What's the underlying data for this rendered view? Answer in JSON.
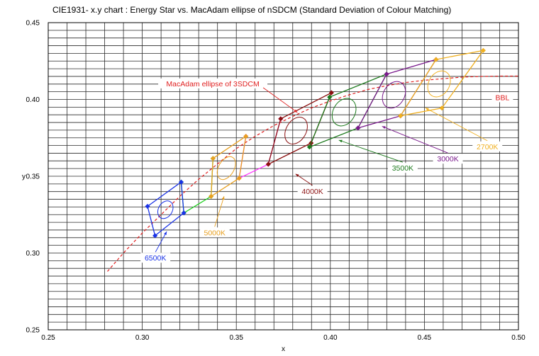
{
  "chart_data": {
    "type": "scatter",
    "title": "CIE1931- x.y chart  : Energy Star vs. MacAdam ellipse of  nSDCM (Standard Deviation of Colour Matching)",
    "xlabel": "x",
    "ylabel": "y",
    "xlim": [
      0.25,
      0.5
    ],
    "ylim": [
      0.25,
      0.45
    ],
    "xticks": [
      "0.25",
      "0.30",
      "0.35",
      "0.40",
      "0.45",
      "0.50"
    ],
    "yticks": [
      "0.25",
      "0.30",
      "0.35",
      "0.40",
      "0.45"
    ],
    "grid": true,
    "colors": {
      "blue": "#1a33e6",
      "green": "#1fcf1f",
      "orange": "#e8a020",
      "magenta": "#ff33ff",
      "darkred": "#8b1010",
      "darkgreen": "#1c7a1c",
      "purple": "#7a1a8c",
      "gold": "#f0b020",
      "red": "#e02020"
    },
    "series": [
      {
        "name": "6500K",
        "color": "#1a33e6",
        "quad": [
          [
            0.3028,
            0.3304
          ],
          [
            0.3207,
            0.3462
          ],
          [
            0.3221,
            0.3261
          ],
          [
            0.3068,
            0.3113
          ]
        ],
        "ellipse": {
          "cx": 0.3123,
          "cy": 0.3282,
          "a": 0.0037,
          "b": 0.0061,
          "tilt": -30
        },
        "label_pos": [
          0.307,
          0.296
        ],
        "arrow_to": [
          0.313,
          0.314
        ]
      },
      {
        "name": "5000K",
        "color": "#e8a020",
        "quad": [
          [
            0.3376,
            0.3616
          ],
          [
            0.3551,
            0.376
          ],
          [
            0.3515,
            0.3487
          ],
          [
            0.3366,
            0.3369
          ]
        ],
        "ellipse": {
          "cx": 0.3447,
          "cy": 0.3553,
          "a": 0.0041,
          "b": 0.0081,
          "tilt": -30
        },
        "label_pos": [
          0.3385,
          0.3125
        ],
        "arrow_to": [
          0.3435,
          0.337
        ]
      },
      {
        "name": "4000K",
        "color": "#8b1010",
        "quad": [
          [
            0.3736,
            0.3874
          ],
          [
            0.4006,
            0.4044
          ],
          [
            0.3898,
            0.3716
          ],
          [
            0.367,
            0.3578
          ]
        ],
        "ellipse": {
          "cx": 0.3818,
          "cy": 0.3797,
          "a": 0.0053,
          "b": 0.0094,
          "tilt": -30
        },
        "label_pos": [
          0.3905,
          0.3395
        ],
        "arrow_to": [
          0.3815,
          0.3515
        ]
      },
      {
        "name": "3500K",
        "color": "#1c7a1c",
        "quad": [
          [
            0.3996,
            0.4015
          ],
          [
            0.4299,
            0.4165
          ],
          [
            0.4147,
            0.3814
          ],
          [
            0.3889,
            0.369
          ]
        ],
        "ellipse": {
          "cx": 0.4073,
          "cy": 0.3917,
          "a": 0.0058,
          "b": 0.0095,
          "tilt": -30
        },
        "label_pos": [
          0.4385,
          0.3545
        ],
        "arrow_to": [
          0.4045,
          0.3735
        ]
      },
      {
        "name": "3000K",
        "color": "#7a1a8c",
        "quad": [
          [
            0.4299,
            0.4165
          ],
          [
            0.4562,
            0.426
          ],
          [
            0.4373,
            0.3893
          ],
          [
            0.4147,
            0.3814
          ]
        ],
        "ellipse": {
          "cx": 0.4338,
          "cy": 0.403,
          "a": 0.0056,
          "b": 0.0092,
          "tilt": -30
        },
        "label_pos": [
          0.4625,
          0.3605
        ],
        "arrow_to": [
          0.4275,
          0.3825
        ]
      },
      {
        "name": "2700K",
        "color": "#f0b020",
        "quad": [
          [
            0.4562,
            0.426
          ],
          [
            0.4813,
            0.4319
          ],
          [
            0.4593,
            0.3944
          ],
          [
            0.4373,
            0.3893
          ]
        ],
        "ellipse": {
          "cx": 0.4578,
          "cy": 0.4101,
          "a": 0.0055,
          "b": 0.009,
          "tilt": -30
        },
        "label_pos": [
          0.4835,
          0.3685
        ],
        "arrow_to": [
          0.4505,
          0.3945
        ]
      }
    ],
    "connectors": [
      {
        "color": "#1fcf1f",
        "points": [
          [
            0.3207,
            0.3462
          ],
          [
            0.3221,
            0.3261
          ],
          [
            0.3366,
            0.3369
          ],
          [
            0.3376,
            0.3616
          ]
        ]
      },
      {
        "color": "#ff33ff",
        "points": [
          [
            0.3551,
            0.376
          ],
          [
            0.3515,
            0.3487
          ],
          [
            0.367,
            0.3578
          ],
          [
            0.3736,
            0.3874
          ]
        ]
      }
    ],
    "bbl": {
      "name": "BBL",
      "color": "#e02020",
      "points": [
        [
          0.2815,
          0.288
        ],
        [
          0.29,
          0.3
        ],
        [
          0.3,
          0.313
        ],
        [
          0.31,
          0.325
        ],
        [
          0.32,
          0.337
        ],
        [
          0.33,
          0.348
        ],
        [
          0.34,
          0.358
        ],
        [
          0.35,
          0.368
        ],
        [
          0.36,
          0.376
        ],
        [
          0.37,
          0.383
        ],
        [
          0.38,
          0.389
        ],
        [
          0.39,
          0.3945
        ],
        [
          0.4,
          0.399
        ],
        [
          0.41,
          0.403
        ],
        [
          0.42,
          0.4065
        ],
        [
          0.43,
          0.409
        ],
        [
          0.44,
          0.411
        ],
        [
          0.45,
          0.4125
        ],
        [
          0.46,
          0.4135
        ],
        [
          0.47,
          0.4145
        ],
        [
          0.48,
          0.415
        ],
        [
          0.49,
          0.4152
        ],
        [
          0.5,
          0.4152
        ]
      ],
      "label_pos": [
        0.4915,
        0.4005
      ]
    },
    "annotation": {
      "text": "MacAdam ellipse of 3SDCM",
      "color": "#e02020",
      "pos": [
        0.3375,
        0.4095
      ],
      "arrow_to": [
        0.3825,
        0.3915
      ]
    }
  }
}
